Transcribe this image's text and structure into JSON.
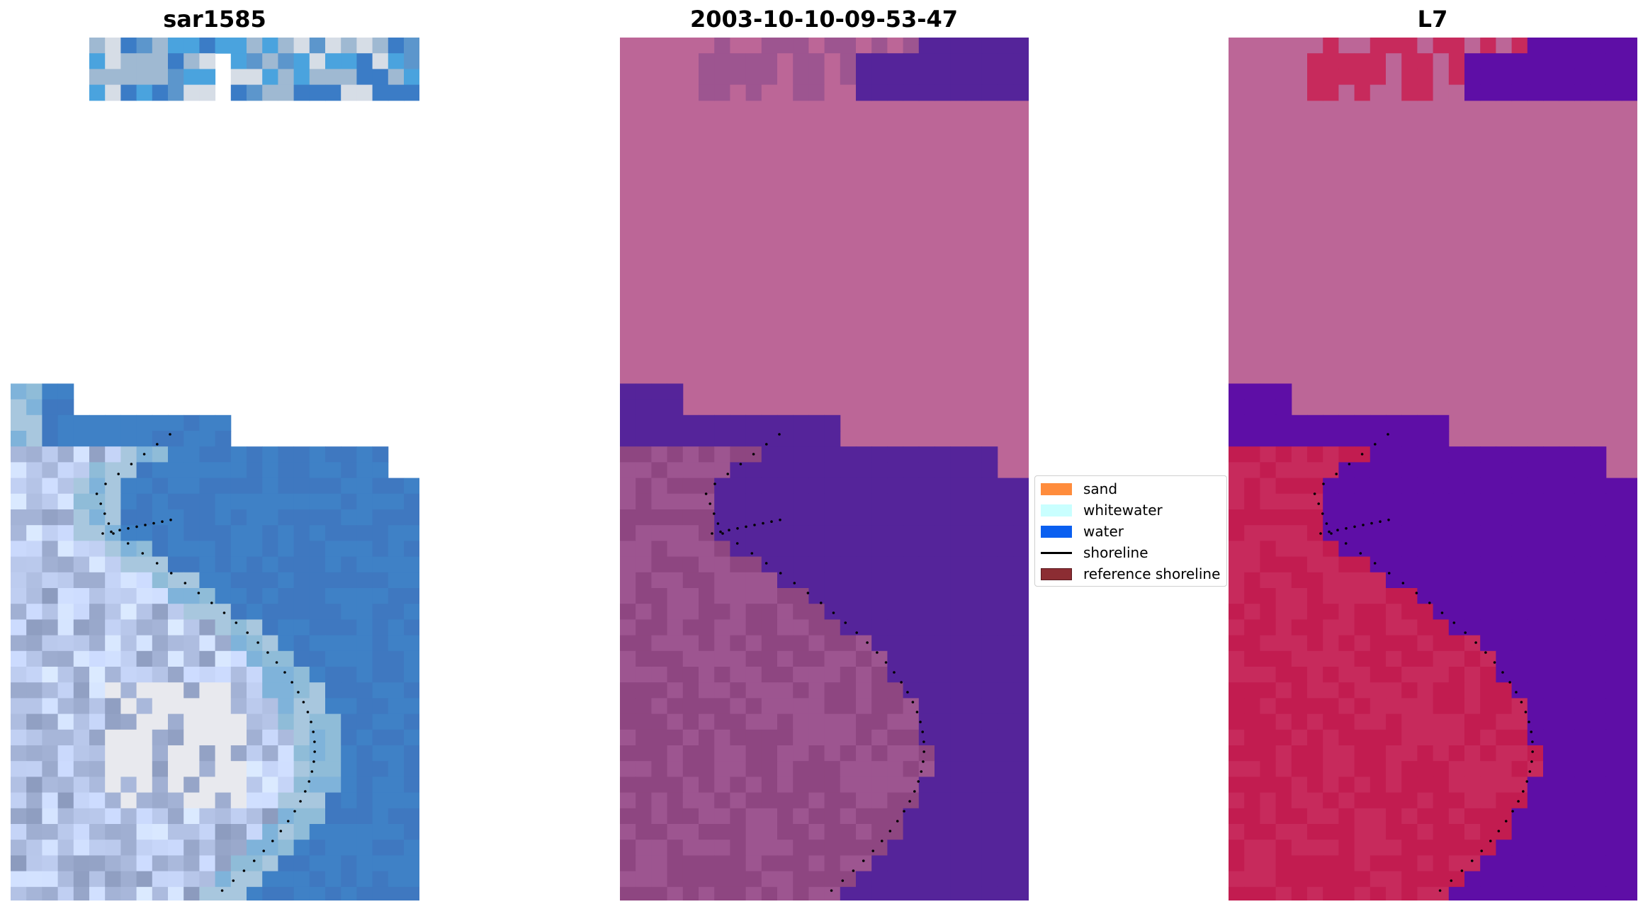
{
  "panels": [
    {
      "title": "sar1585"
    },
    {
      "title": "2003-10-10-09-53-47"
    },
    {
      "title": "L7"
    }
  ],
  "legend": {
    "items": [
      {
        "label": "sand",
        "kind": "swatch",
        "color": "#ff8c3c"
      },
      {
        "label": "whitewater",
        "kind": "swatch",
        "color": "#c9ffff"
      },
      {
        "label": "water",
        "kind": "swatch",
        "color": "#0a5ff0"
      },
      {
        "label": "shoreline",
        "kind": "line",
        "color": "#000000"
      },
      {
        "label": "reference shoreline",
        "kind": "swatch",
        "color": "#8c2d33"
      }
    ]
  },
  "colors": {
    "rgb_blue": "#3f78c0",
    "rgb_light": "#a3b6cf",
    "rgb_white": "#e8e9ee",
    "swir_pink": "#bc6697",
    "swir_sea": "#55249a",
    "swir_land": "#8e4681",
    "ndwi_pink": "#bc6697",
    "ndwi_sea": "#5e0ea6",
    "ndwi_land": "#c21c50",
    "shoreline_dots": "#000000"
  }
}
